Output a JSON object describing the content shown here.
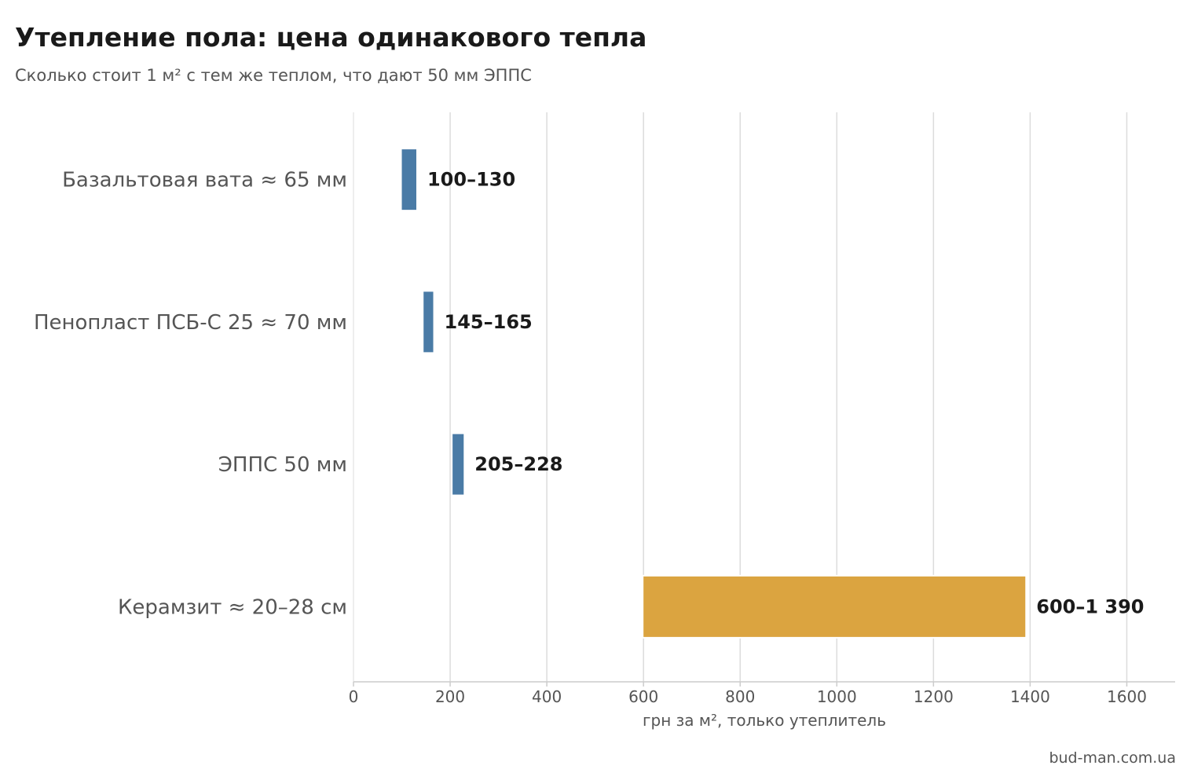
{
  "title": "Утепление пола: цена одинакового тепла",
  "subtitle": "Сколько стоит 1 м² с тем же теплом, что дают 50 мм ЭППС",
  "source": "bud-man.com.ua",
  "chart_data": {
    "type": "bar",
    "orientation": "horizontal",
    "title": "Утепление пола: цена одинакового тепла",
    "subtitle": "Сколько стоит 1 м² с тем же теплом, что дают 50 мм ЭППС",
    "xlabel": "грн за м², только утеплитель",
    "ylabel": "",
    "xlim": [
      0,
      1700
    ],
    "xticks": [
      0,
      200,
      400,
      600,
      800,
      1000,
      1200,
      1400,
      1600
    ],
    "grid": "vertical",
    "categories": [
      "Базальтовая вата ≈ 65 мм",
      "Пенопласт ПСБ-С 25 ≈ 70 мм",
      "ЭППС 50 мм",
      "Керамзит ≈ 20–28 см"
    ],
    "ranges": [
      {
        "low": 100,
        "high": 130,
        "label": "100–130",
        "color": "#4a7ba6"
      },
      {
        "low": 145,
        "high": 165,
        "label": "145–165",
        "color": "#4a7ba6"
      },
      {
        "low": 205,
        "high": 228,
        "label": "205–228",
        "color": "#4a7ba6"
      },
      {
        "low": 600,
        "high": 1390,
        "label": "600–1 390",
        "color": "#dba440"
      }
    ]
  }
}
